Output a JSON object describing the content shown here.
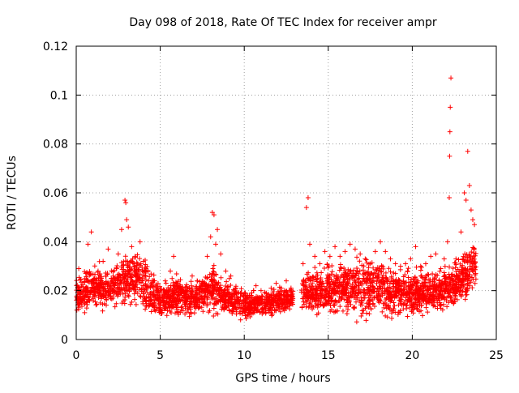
{
  "chart_data": {
    "type": "scatter",
    "title": "Day 098 of 2018, Rate Of TEC Index for receiver ampr",
    "xlabel": "GPS time / hours",
    "ylabel": "ROTI / TECUs",
    "xlim": [
      0,
      25
    ],
    "ylim": [
      0,
      0.12
    ],
    "x_ticks": [
      0,
      5,
      10,
      15,
      20,
      25
    ],
    "x_tick_labels": [
      "0",
      "5",
      "10",
      "15",
      "20",
      "25"
    ],
    "y_ticks": [
      0,
      0.02,
      0.04,
      0.06,
      0.08,
      0.1,
      0.12
    ],
    "y_tick_labels": [
      "0",
      "0.02",
      "0.04",
      "0.06",
      "0.08",
      "0.1",
      "0.12"
    ],
    "grid": true,
    "marker": "+",
    "marker_color": "#ff0000",
    "series": [
      {
        "name": "ROTI",
        "points": [
          [
            0.1,
            0.021
          ],
          [
            0.15,
            0.029
          ],
          [
            0.3,
            0.015
          ],
          [
            0.5,
            0.011
          ],
          [
            0.7,
            0.039
          ],
          [
            0.9,
            0.044
          ],
          [
            1.0,
            0.024
          ],
          [
            1.3,
            0.028
          ],
          [
            1.6,
            0.032
          ],
          [
            1.9,
            0.037
          ],
          [
            2.2,
            0.026
          ],
          [
            2.5,
            0.035
          ],
          [
            2.7,
            0.045
          ],
          [
            2.9,
            0.057
          ],
          [
            2.95,
            0.056
          ],
          [
            3.0,
            0.049
          ],
          [
            3.1,
            0.046
          ],
          [
            3.3,
            0.038
          ],
          [
            3.5,
            0.034
          ],
          [
            3.8,
            0.04
          ],
          [
            4.0,
            0.032
          ],
          [
            4.3,
            0.024
          ],
          [
            4.6,
            0.018
          ],
          [
            5.0,
            0.02
          ],
          [
            5.3,
            0.024
          ],
          [
            5.6,
            0.028
          ],
          [
            5.8,
            0.034
          ],
          [
            6.0,
            0.022
          ],
          [
            6.3,
            0.02
          ],
          [
            6.6,
            0.017
          ],
          [
            6.9,
            0.026
          ],
          [
            7.2,
            0.024
          ],
          [
            7.5,
            0.022
          ],
          [
            7.8,
            0.034
          ],
          [
            8.0,
            0.042
          ],
          [
            8.1,
            0.052
          ],
          [
            8.2,
            0.051
          ],
          [
            8.3,
            0.039
          ],
          [
            8.4,
            0.045
          ],
          [
            8.6,
            0.035
          ],
          [
            8.9,
            0.028
          ],
          [
            9.2,
            0.026
          ],
          [
            9.5,
            0.021
          ],
          [
            9.8,
            0.019
          ],
          [
            10.1,
            0.017
          ],
          [
            10.4,
            0.018
          ],
          [
            10.7,
            0.022
          ],
          [
            11.0,
            0.02
          ],
          [
            11.3,
            0.019
          ],
          [
            11.6,
            0.021
          ],
          [
            11.9,
            0.023
          ],
          [
            12.2,
            0.021
          ],
          [
            12.5,
            0.024
          ],
          [
            12.7,
            0.02
          ],
          [
            13.5,
            0.031
          ],
          [
            13.7,
            0.054
          ],
          [
            13.8,
            0.058
          ],
          [
            13.9,
            0.039
          ],
          [
            14.2,
            0.034
          ],
          [
            14.5,
            0.031
          ],
          [
            14.8,
            0.036
          ],
          [
            15.1,
            0.034
          ],
          [
            15.4,
            0.038
          ],
          [
            15.7,
            0.034
          ],
          [
            16.0,
            0.036
          ],
          [
            16.3,
            0.039
          ],
          [
            16.6,
            0.037
          ],
          [
            16.9,
            0.035
          ],
          [
            17.2,
            0.033
          ],
          [
            17.5,
            0.031
          ],
          [
            17.8,
            0.036
          ],
          [
            18.1,
            0.04
          ],
          [
            18.4,
            0.036
          ],
          [
            18.7,
            0.033
          ],
          [
            19.0,
            0.031
          ],
          [
            19.3,
            0.03
          ],
          [
            19.6,
            0.031
          ],
          [
            19.9,
            0.033
          ],
          [
            20.2,
            0.038
          ],
          [
            20.5,
            0.03
          ],
          [
            20.8,
            0.031
          ],
          [
            21.1,
            0.034
          ],
          [
            21.4,
            0.035
          ],
          [
            21.7,
            0.029
          ],
          [
            21.9,
            0.033
          ],
          [
            22.1,
            0.04
          ],
          [
            22.2,
            0.058
          ],
          [
            22.22,
            0.075
          ],
          [
            22.24,
            0.085
          ],
          [
            22.26,
            0.095
          ],
          [
            22.3,
            0.107
          ],
          [
            22.6,
            0.033
          ],
          [
            22.9,
            0.044
          ],
          [
            23.1,
            0.06
          ],
          [
            23.2,
            0.057
          ],
          [
            23.3,
            0.077
          ],
          [
            23.4,
            0.063
          ],
          [
            23.5,
            0.053
          ],
          [
            23.6,
            0.049
          ],
          [
            23.7,
            0.047
          ]
        ],
        "band_low": [
          [
            0.0,
            0.009
          ],
          [
            1.0,
            0.009
          ],
          [
            2.0,
            0.01
          ],
          [
            3.0,
            0.011
          ],
          [
            4.0,
            0.009
          ],
          [
            5.0,
            0.007
          ],
          [
            6.0,
            0.008
          ],
          [
            7.0,
            0.008
          ],
          [
            8.0,
            0.009
          ],
          [
            9.0,
            0.008
          ],
          [
            10.0,
            0.007
          ],
          [
            11.0,
            0.008
          ],
          [
            12.0,
            0.009
          ],
          [
            12.9,
            0.01
          ],
          [
            13.4,
            0.009
          ],
          [
            14.0,
            0.008
          ],
          [
            15.0,
            0.007
          ],
          [
            16.0,
            0.007
          ],
          [
            17.0,
            0.006
          ],
          [
            18.0,
            0.007
          ],
          [
            19.0,
            0.006
          ],
          [
            20.0,
            0.007
          ],
          [
            21.0,
            0.008
          ],
          [
            22.0,
            0.009
          ],
          [
            23.0,
            0.011
          ],
          [
            23.8,
            0.018
          ]
        ],
        "band_high": [
          [
            0.0,
            0.025
          ],
          [
            1.0,
            0.03
          ],
          [
            2.0,
            0.03
          ],
          [
            3.0,
            0.035
          ],
          [
            4.0,
            0.033
          ],
          [
            5.0,
            0.022
          ],
          [
            6.0,
            0.026
          ],
          [
            7.0,
            0.022
          ],
          [
            8.0,
            0.03
          ],
          [
            9.0,
            0.024
          ],
          [
            10.0,
            0.02
          ],
          [
            11.0,
            0.02
          ],
          [
            12.0,
            0.021
          ],
          [
            12.9,
            0.022
          ],
          [
            13.4,
            0.026
          ],
          [
            14.0,
            0.029
          ],
          [
            15.0,
            0.03
          ],
          [
            16.0,
            0.032
          ],
          [
            17.0,
            0.032
          ],
          [
            18.0,
            0.033
          ],
          [
            19.0,
            0.029
          ],
          [
            20.0,
            0.027
          ],
          [
            21.0,
            0.028
          ],
          [
            22.0,
            0.03
          ],
          [
            23.0,
            0.035
          ],
          [
            23.8,
            0.042
          ]
        ],
        "gaps": [
          [
            12.9,
            13.4
          ]
        ]
      }
    ]
  }
}
